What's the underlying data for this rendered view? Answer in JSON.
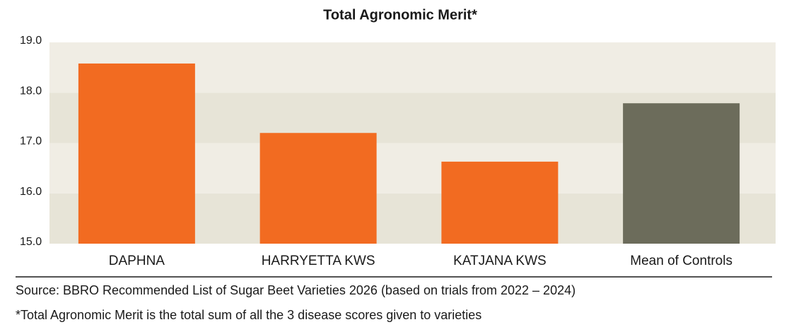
{
  "chart_data": {
    "type": "bar",
    "title": "Total Agronomic Merit*",
    "categories": [
      "DAPHNA",
      "HARRYETTA KWS",
      "KATJANA KWS",
      "Mean of Controls"
    ],
    "values": [
      18.58,
      17.2,
      16.63,
      17.79
    ],
    "colors": [
      "#f26b21",
      "#f26b21",
      "#f26b21",
      "#6c6c5b"
    ],
    "ylim": [
      15,
      19
    ],
    "yticks": [
      {
        "value": 15,
        "label": "15.0"
      },
      {
        "value": 16,
        "label": "16.0"
      },
      {
        "value": 17,
        "label": "17.0"
      },
      {
        "value": 18,
        "label": "18.0"
      },
      {
        "value": 19,
        "label": "19.0"
      }
    ],
    "source": "Source: BBRO Recommended List of Sugar Beet Varieties 2026 (based on trials from 2022 – 2024)",
    "note": "*Total Agronomic Merit is the total sum of all the 3 disease scores given to varieties"
  }
}
